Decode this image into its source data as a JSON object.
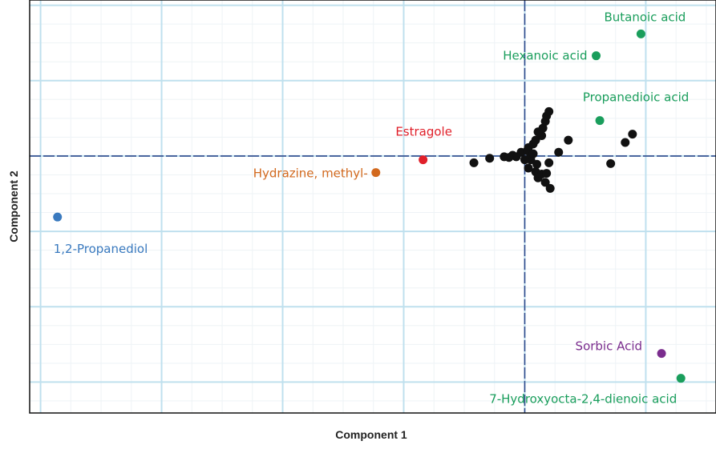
{
  "chart_data": {
    "type": "scatter",
    "title": "",
    "xlabel": "Component 1",
    "ylabel": "Component 2",
    "xlim": [
      -4.09,
      1.58
    ],
    "ylim": [
      -3.41,
      2.07
    ],
    "grid": true,
    "legend": "none",
    "reference_lines": {
      "x": 0,
      "y": 0,
      "color": "#2f4a8c",
      "style": "dashed"
    },
    "labeled_points": [
      {
        "name": "Butanoic acid",
        "x": 0.96,
        "y": 1.62,
        "color": "#1a9e5c"
      },
      {
        "name": "Hexanoic acid",
        "x": 0.59,
        "y": 1.33,
        "color": "#1a9e5c"
      },
      {
        "name": "Propanedioic acid",
        "x": 0.62,
        "y": 0.47,
        "color": "#1a9e5c"
      },
      {
        "name": "Estragole",
        "x": -0.84,
        "y": -0.05,
        "color": "#e0202a"
      },
      {
        "name": "Hydrazine, methyl-",
        "x": -1.23,
        "y": -0.22,
        "color": "#d2691e"
      },
      {
        "name": "1,2-Propanediol",
        "x": -3.86,
        "y": -0.81,
        "color": "#3a7abf"
      },
      {
        "name": "Sorbic Acid",
        "x": 1.13,
        "y": -2.62,
        "color": "#7b2d8e"
      },
      {
        "name": "7-Hydroxyocta-2,4-dienoic acid",
        "x": 1.29,
        "y": -2.95,
        "color": "#1a9e5c"
      }
    ],
    "other_points_color": "#111111",
    "other_points": [
      [
        -0.42,
        -0.09
      ],
      [
        -0.29,
        -0.03
      ],
      [
        -0.17,
        -0.01
      ],
      [
        -0.1,
        0.01
      ],
      [
        -0.03,
        0.05
      ],
      [
        0.03,
        0.11
      ],
      [
        0.07,
        0.16
      ],
      [
        0.09,
        0.21
      ],
      [
        0.14,
        0.27
      ],
      [
        0.15,
        0.37
      ],
      [
        0.17,
        0.46
      ],
      [
        0.18,
        0.53
      ],
      [
        0.2,
        0.59
      ],
      [
        0.11,
        0.32
      ],
      [
        0.36,
        0.21
      ],
      [
        0.28,
        0.05
      ],
      [
        0.2,
        -0.09
      ],
      [
        0.89,
        0.29
      ],
      [
        0.83,
        0.18
      ],
      [
        0.71,
        -0.1
      ],
      [
        0.05,
        -0.05
      ],
      [
        0.03,
        -0.16
      ],
      [
        0.09,
        -0.21
      ],
      [
        0.11,
        -0.29
      ],
      [
        0.17,
        -0.35
      ],
      [
        0.21,
        -0.43
      ],
      [
        0.14,
        -0.24
      ],
      [
        0.05,
        0.0
      ],
      [
        0.0,
        -0.05
      ],
      [
        -0.07,
        -0.01
      ],
      [
        -0.13,
        -0.02
      ],
      [
        0.02,
        0.07
      ],
      [
        0.07,
        0.03
      ],
      [
        0.1,
        -0.11
      ],
      [
        0.18,
        -0.23
      ]
    ]
  }
}
